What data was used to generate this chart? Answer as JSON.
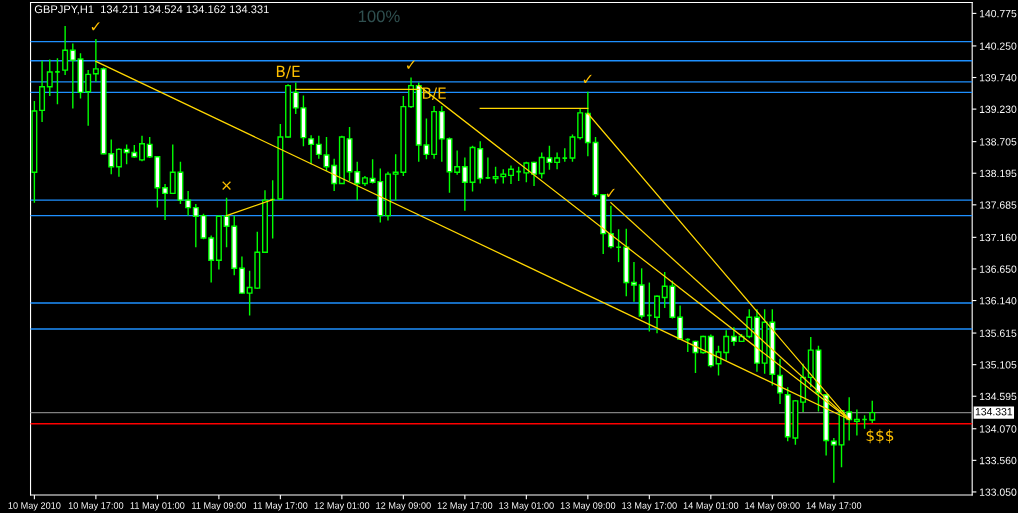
{
  "chart_data": {
    "type": "candlestick",
    "title": "GBPJPY,H1  134.211 134.524 134.162 134.331",
    "x": [
      "2010-05-10T09:00",
      "2010-05-10T10:00",
      "2010-05-10T11:00",
      "2010-05-10T12:00",
      "2010-05-10T13:00",
      "2010-05-10T14:00",
      "2010-05-10T15:00",
      "2010-05-10T16:00",
      "2010-05-10T17:00",
      "2010-05-10T18:00",
      "2010-05-10T19:00",
      "2010-05-10T20:00",
      "2010-05-10T21:00",
      "2010-05-10T22:00",
      "2010-05-10T23:00",
      "2010-05-11T00:00",
      "2010-05-11T01:00",
      "2010-05-11T02:00",
      "2010-05-11T03:00",
      "2010-05-11T04:00",
      "2010-05-11T05:00",
      "2010-05-11T06:00",
      "2010-05-11T07:00",
      "2010-05-11T08:00",
      "2010-05-11T09:00",
      "2010-05-11T10:00",
      "2010-05-11T11:00",
      "2010-05-11T12:00",
      "2010-05-11T13:00",
      "2010-05-11T14:00",
      "2010-05-11T15:00",
      "2010-05-11T16:00",
      "2010-05-11T17:00",
      "2010-05-11T18:00",
      "2010-05-11T19:00",
      "2010-05-11T20:00",
      "2010-05-11T21:00",
      "2010-05-11T22:00",
      "2010-05-11T23:00",
      "2010-05-12T00:00",
      "2010-05-12T01:00",
      "2010-05-12T02:00",
      "2010-05-12T03:00",
      "2010-05-12T04:00",
      "2010-05-12T05:00",
      "2010-05-12T06:00",
      "2010-05-12T07:00",
      "2010-05-12T08:00",
      "2010-05-12T09:00",
      "2010-05-12T10:00",
      "2010-05-12T11:00",
      "2010-05-12T12:00",
      "2010-05-12T13:00",
      "2010-05-12T14:00",
      "2010-05-12T15:00",
      "2010-05-12T16:00",
      "2010-05-12T17:00",
      "2010-05-12T18:00",
      "2010-05-12T19:00",
      "2010-05-12T20:00",
      "2010-05-12T21:00",
      "2010-05-12T22:00",
      "2010-05-12T23:00",
      "2010-05-13T00:00",
      "2010-05-13T01:00",
      "2010-05-13T02:00",
      "2010-05-13T03:00",
      "2010-05-13T04:00",
      "2010-05-13T05:00",
      "2010-05-13T06:00",
      "2010-05-13T07:00",
      "2010-05-13T08:00",
      "2010-05-13T09:00",
      "2010-05-13T10:00",
      "2010-05-13T11:00",
      "2010-05-13T12:00",
      "2010-05-13T13:00",
      "2010-05-13T14:00",
      "2010-05-13T15:00",
      "2010-05-13T16:00",
      "2010-05-13T17:00",
      "2010-05-13T18:00",
      "2010-05-13T19:00",
      "2010-05-13T20:00",
      "2010-05-13T21:00",
      "2010-05-13T22:00",
      "2010-05-13T23:00",
      "2010-05-14T00:00",
      "2010-05-14T01:00",
      "2010-05-14T02:00",
      "2010-05-14T03:00",
      "2010-05-14T04:00",
      "2010-05-14T05:00",
      "2010-05-14T06:00",
      "2010-05-14T07:00",
      "2010-05-14T08:00",
      "2010-05-14T09:00",
      "2010-05-14T10:00",
      "2010-05-14T11:00",
      "2010-05-14T12:00",
      "2010-05-14T13:00",
      "2010-05-14T14:00",
      "2010-05-14T15:00",
      "2010-05-14T16:00",
      "2010-05-14T17:00",
      "2010-05-14T18:00",
      "2010-05-14T19:00",
      "2010-05-14T20:00",
      "2010-05-14T21:00",
      "2010-05-14T22:00"
    ],
    "ohlc": [
      [
        138.21,
        139.36,
        137.72,
        139.2
      ],
      [
        139.21,
        140.01,
        139.02,
        139.59
      ],
      [
        139.59,
        140.03,
        139.44,
        139.83
      ],
      [
        139.83,
        140.05,
        139.31,
        139.83
      ],
      [
        139.86,
        140.57,
        139.78,
        140.18
      ],
      [
        140.18,
        140.29,
        139.24,
        140.02
      ],
      [
        140.04,
        140.13,
        139.4,
        139.5
      ],
      [
        139.51,
        139.86,
        138.96,
        139.79
      ],
      [
        139.8,
        140.36,
        139.67,
        139.88
      ],
      [
        139.88,
        139.9,
        138.5,
        138.51
      ],
      [
        138.51,
        138.74,
        138.18,
        138.3
      ],
      [
        138.3,
        138.6,
        138.14,
        138.58
      ],
      [
        138.58,
        138.66,
        138.34,
        138.53
      ],
      [
        138.53,
        138.65,
        138.45,
        138.46
      ],
      [
        138.41,
        138.8,
        138.39,
        138.67
      ],
      [
        138.66,
        138.78,
        138.44,
        138.46
      ],
      [
        138.46,
        138.47,
        137.64,
        137.96
      ],
      [
        137.96,
        138.02,
        137.44,
        137.87
      ],
      [
        137.87,
        138.66,
        137.86,
        138.21
      ],
      [
        138.21,
        138.38,
        137.7,
        137.76
      ],
      [
        137.76,
        137.91,
        137.51,
        137.64
      ],
      [
        137.64,
        137.7,
        137.0,
        137.5
      ],
      [
        137.51,
        137.54,
        137.13,
        137.15
      ],
      [
        137.15,
        137.19,
        136.43,
        136.79
      ],
      [
        136.79,
        137.51,
        136.64,
        137.5
      ],
      [
        137.5,
        137.8,
        137.0,
        137.34
      ],
      [
        137.34,
        137.51,
        136.55,
        136.66
      ],
      [
        136.66,
        136.85,
        136.25,
        136.26
      ],
      [
        136.26,
        136.62,
        135.9,
        136.35
      ],
      [
        136.34,
        137.25,
        136.33,
        136.92
      ],
      [
        136.92,
        137.92,
        136.91,
        137.76
      ],
      [
        137.77,
        138.08,
        137.14,
        137.77
      ],
      [
        137.78,
        138.99,
        137.77,
        138.78
      ],
      [
        138.78,
        139.63,
        138.77,
        139.61
      ],
      [
        139.5,
        139.66,
        139.15,
        139.25
      ],
      [
        139.25,
        139.45,
        138.63,
        138.77
      ],
      [
        138.75,
        138.81,
        138.34,
        138.66
      ],
      [
        138.66,
        138.8,
        138.43,
        138.5
      ],
      [
        138.49,
        138.78,
        138.23,
        138.3
      ],
      [
        138.32,
        138.43,
        137.91,
        138.03
      ],
      [
        138.03,
        138.8,
        138.02,
        138.78
      ],
      [
        138.75,
        138.94,
        138.07,
        138.22
      ],
      [
        138.22,
        138.38,
        137.76,
        138.03
      ],
      [
        138.03,
        138.15,
        137.99,
        138.12
      ],
      [
        138.11,
        138.42,
        138.03,
        138.05
      ],
      [
        138.06,
        138.27,
        137.4,
        137.51
      ],
      [
        137.51,
        138.22,
        137.43,
        138.18
      ],
      [
        138.18,
        138.5,
        137.75,
        138.21
      ],
      [
        138.21,
        139.44,
        138.15,
        139.27
      ],
      [
        139.27,
        139.74,
        139.25,
        139.61
      ],
      [
        139.61,
        139.66,
        138.38,
        138.65
      ],
      [
        138.65,
        139.08,
        138.42,
        138.5
      ],
      [
        138.5,
        139.28,
        138.43,
        139.19
      ],
      [
        139.19,
        139.28,
        138.38,
        138.75
      ],
      [
        138.75,
        138.77,
        137.88,
        138.22
      ],
      [
        138.21,
        138.56,
        138.17,
        138.3
      ],
      [
        138.3,
        138.45,
        137.59,
        138.05
      ],
      [
        138.05,
        138.64,
        137.9,
        138.61
      ],
      [
        138.59,
        138.71,
        138.03,
        138.11
      ],
      [
        138.12,
        138.45,
        138.1,
        138.12
      ],
      [
        138.11,
        138.3,
        138.03,
        138.14
      ],
      [
        138.14,
        138.26,
        138.03,
        138.18
      ],
      [
        138.16,
        138.32,
        138.02,
        138.26
      ],
      [
        138.22,
        138.3,
        138.07,
        138.22
      ],
      [
        138.2,
        138.38,
        138.05,
        138.36
      ],
      [
        138.37,
        138.38,
        137.99,
        138.18
      ],
      [
        138.19,
        138.53,
        138.11,
        138.45
      ],
      [
        138.44,
        138.64,
        138.25,
        138.37
      ],
      [
        138.37,
        138.53,
        138.26,
        138.44
      ],
      [
        138.44,
        138.6,
        138.38,
        138.44
      ],
      [
        138.44,
        138.82,
        138.38,
        138.78
      ],
      [
        138.77,
        139.23,
        138.74,
        139.17
      ],
      [
        139.16,
        139.51,
        138.47,
        138.69
      ],
      [
        138.69,
        138.78,
        137.81,
        137.85
      ],
      [
        137.85,
        137.86,
        136.89,
        137.22
      ],
      [
        137.22,
        137.67,
        136.98,
        137.01
      ],
      [
        137.0,
        137.29,
        136.76,
        137.0
      ],
      [
        137.0,
        137.3,
        136.21,
        136.43
      ],
      [
        136.43,
        136.76,
        136.12,
        136.39
      ],
      [
        136.39,
        136.66,
        135.85,
        135.89
      ],
      [
        135.9,
        136.43,
        135.64,
        135.9
      ],
      [
        135.87,
        136.22,
        135.61,
        136.21
      ],
      [
        136.19,
        136.6,
        136.02,
        136.37
      ],
      [
        136.37,
        136.46,
        135.85,
        135.87
      ],
      [
        135.87,
        136.06,
        135.51,
        135.52
      ],
      [
        135.51,
        135.53,
        135.31,
        135.51
      ],
      [
        135.48,
        135.49,
        134.97,
        135.3
      ],
      [
        135.3,
        135.57,
        135.28,
        135.56
      ],
      [
        135.56,
        135.59,
        135.06,
        135.09
      ],
      [
        135.12,
        135.41,
        134.93,
        135.31
      ],
      [
        135.3,
        135.66,
        135.17,
        135.56
      ],
      [
        135.56,
        135.71,
        135.41,
        135.48
      ],
      [
        135.48,
        135.6,
        135.47,
        135.56
      ],
      [
        135.56,
        136.0,
        135.53,
        135.87
      ],
      [
        135.87,
        136.0,
        134.99,
        135.13
      ],
      [
        135.13,
        136.0,
        134.96,
        135.79
      ],
      [
        135.79,
        136.0,
        134.77,
        134.95
      ],
      [
        134.93,
        135.2,
        134.47,
        134.65
      ],
      [
        134.62,
        134.74,
        133.87,
        133.94
      ],
      [
        133.92,
        134.53,
        133.81,
        134.52
      ],
      [
        134.5,
        135.12,
        134.34,
        134.9
      ],
      [
        134.9,
        135.55,
        134.74,
        135.34
      ],
      [
        135.34,
        135.41,
        134.35,
        134.65
      ],
      [
        134.62,
        134.63,
        133.64,
        133.88
      ],
      [
        133.87,
        133.92,
        133.2,
        133.81
      ],
      [
        133.81,
        134.37,
        133.45,
        134.36
      ],
      [
        134.34,
        134.58,
        133.88,
        134.22
      ],
      [
        134.19,
        134.38,
        133.96,
        134.22
      ],
      [
        134.22,
        134.29,
        134.07,
        134.22
      ],
      [
        134.211,
        134.524,
        134.162,
        134.331
      ]
    ],
    "series": [
      {
        "type": "line",
        "color": "#ffd700",
        "x": [
          "2010-05-10T17:00",
          "2010-05-14T19:00"
        ],
        "values": [
          140.0,
          134.22
        ]
      },
      {
        "type": "line",
        "color": "#ffd700",
        "x": [
          "2010-05-13T09:00",
          "2010-05-14T19:00"
        ],
        "values": [
          139.16,
          134.22
        ]
      },
      {
        "type": "line",
        "color": "#ffd700",
        "x": [
          "2010-05-12T11:00",
          "2010-05-14T19:00"
        ],
        "values": [
          139.61,
          134.22
        ]
      },
      {
        "type": "line",
        "color": "#ffd700",
        "x": [
          "2010-05-13T12:00",
          "2010-05-14T19:00"
        ],
        "values": [
          137.72,
          134.22
        ]
      },
      {
        "type": "line",
        "color": "#ffd700",
        "x": [
          "2010-05-11T10:00",
          "2010-05-11T16:00"
        ],
        "values": [
          137.51,
          137.77
        ]
      },
      {
        "type": "line",
        "color": "#ffd700",
        "x": [
          "2010-05-11T19:00",
          "2010-05-12T11:00"
        ],
        "values": [
          139.55,
          139.55
        ]
      },
      {
        "type": "line",
        "color": "#ffd700",
        "x": [
          "2010-05-12T19:00",
          "2010-05-13T09:00"
        ],
        "values": [
          139.24,
          139.24
        ]
      }
    ],
    "ref_lines": [
      {
        "axis": "y",
        "value": 140.32,
        "color": "#1e90ff"
      },
      {
        "axis": "y",
        "value": 140.01,
        "color": "#1e90ff"
      },
      {
        "axis": "y",
        "value": 139.67,
        "color": "#1e90ff"
      },
      {
        "axis": "y",
        "value": 139.5,
        "color": "#1e90ff"
      },
      {
        "axis": "y",
        "value": 137.76,
        "color": "#1e90ff"
      },
      {
        "axis": "y",
        "value": 137.51,
        "color": "#1e90ff"
      },
      {
        "axis": "y",
        "value": 136.1,
        "color": "#1e90ff"
      },
      {
        "axis": "y",
        "value": 135.68,
        "color": "#1e90ff"
      },
      {
        "axis": "y",
        "value": 134.331,
        "label": "134.331",
        "color": "#808080"
      },
      {
        "axis": "y",
        "value": 134.15,
        "color": "#ff0000"
      }
    ],
    "annotations": [
      "100%",
      {
        "text": "✓",
        "x": "2010-05-10T17:00",
        "y": 140.36
      },
      {
        "text": "×",
        "x": "2010-05-11T10:00",
        "y": 137.8
      },
      {
        "text": "B/E",
        "x": "2010-05-11T18:00",
        "y": 139.63
      },
      {
        "text": "✓",
        "x": "2010-05-12T10:00",
        "y": 139.74
      },
      {
        "text": "B/E",
        "x": "2010-05-12T13:00",
        "y": 139.28
      },
      {
        "text": "✓",
        "x": "2010-05-13T09:00",
        "y": 139.51
      },
      {
        "text": "✓",
        "x": "2010-05-13T12:00",
        "y": 137.67
      },
      {
        "text": "$$$",
        "x": "2010-05-14T23:00",
        "y": 134.15
      }
    ],
    "xlim": [
      "2010-05-10T08:30",
      "2010-05-15T11:00"
    ],
    "xticks": [
      {
        "value": "2010-05-10T09:00",
        "label": "10 May 2010"
      },
      {
        "value": "2010-05-10T17:00",
        "label": "10 May 17:00"
      },
      {
        "value": "2010-05-11T01:00",
        "label": "11 May 01:00"
      },
      {
        "value": "2010-05-11T09:00",
        "label": "11 May 09:00"
      },
      {
        "value": "2010-05-11T17:00",
        "label": "11 May 17:00"
      },
      {
        "value": "2010-05-12T01:00",
        "label": "12 May 01:00"
      },
      {
        "value": "2010-05-12T09:00",
        "label": "12 May 09:00"
      },
      {
        "value": "2010-05-12T17:00",
        "label": "12 May 17:00"
      },
      {
        "value": "2010-05-13T01:00",
        "label": "13 May 01:00"
      },
      {
        "value": "2010-05-13T09:00",
        "label": "13 May 09:00"
      },
      {
        "value": "2010-05-13T17:00",
        "label": "13 May 17:00"
      },
      {
        "value": "2010-05-14T01:00",
        "label": "14 May 01:00"
      },
      {
        "value": "2010-05-14T09:00",
        "label": "14 May 09:00"
      },
      {
        "value": "2010-05-14T17:00",
        "label": "14 May 17:00"
      }
    ],
    "ylim": [
      133.0,
      140.95
    ],
    "yticks": [
      140.775,
      {
        "value": 140.25,
        "label": "140.250"
      },
      {
        "value": 139.74,
        "label": "139.740"
      },
      {
        "value": 139.23,
        "label": "139.230"
      },
      138.705,
      138.195,
      137.685,
      {
        "value": 137.16,
        "label": "137.160"
      },
      {
        "value": 136.65,
        "label": "136.650"
      },
      {
        "value": 136.14,
        "label": "136.140"
      },
      135.615,
      135.105,
      134.595,
      {
        "value": 134.07,
        "label": "134.070"
      },
      {
        "value": 133.56,
        "label": "133.560"
      },
      {
        "value": 133.05,
        "label": "133.050"
      }
    ],
    "grid": false
  }
}
